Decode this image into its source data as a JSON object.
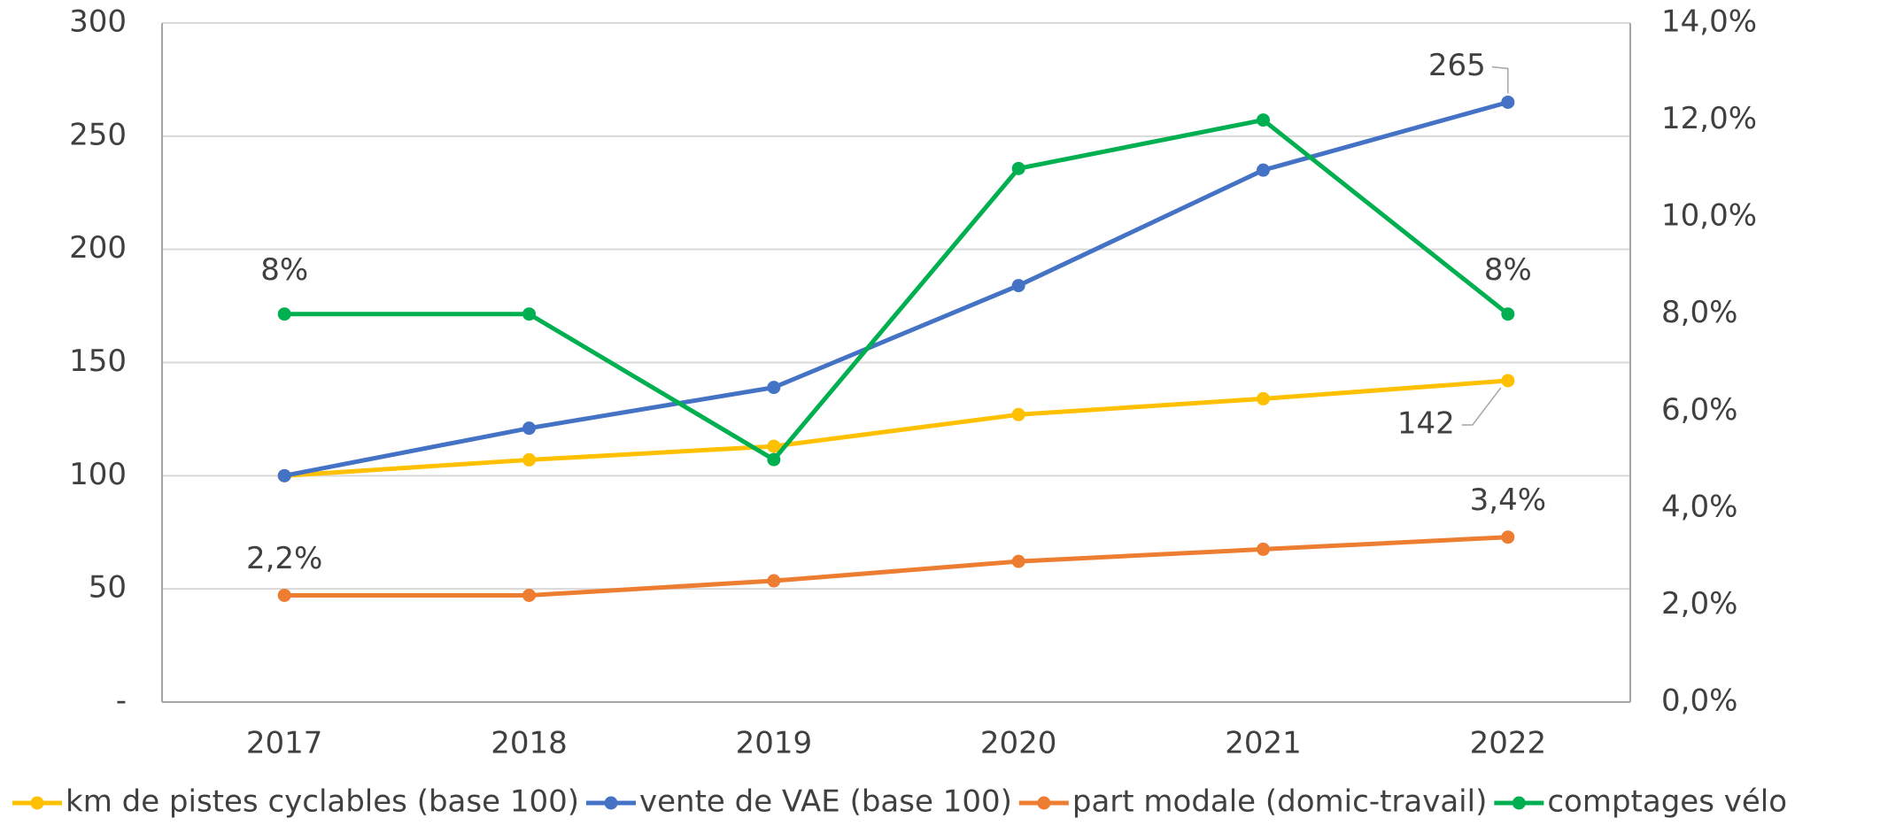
{
  "chart_data": {
    "type": "line",
    "categories": [
      "2017",
      "2018",
      "2019",
      "2020",
      "2021",
      "2022"
    ],
    "series": [
      {
        "name": "km de pistes cyclables (base 100)",
        "color": "#ffc000",
        "values": [
          100,
          107,
          113,
          127,
          134,
          142
        ],
        "value_labels": [
          null,
          null,
          null,
          null,
          null,
          "142"
        ]
      },
      {
        "name": "vente de VAE (base 100)",
        "color": "#4472c4",
        "values": [
          100,
          121,
          139,
          184,
          235,
          265
        ],
        "value_labels": [
          null,
          null,
          null,
          null,
          null,
          "265"
        ]
      },
      {
        "name": "part modale (domic-travail)",
        "color": "#ed7d31",
        "axis": "y2",
        "values": [
          2.2,
          2.2,
          2.5,
          2.9,
          3.15,
          3.4
        ],
        "value_labels": [
          "2,2%",
          null,
          null,
          null,
          null,
          "3,4%"
        ]
      },
      {
        "name": "comptages vélo",
        "color": "#00b050",
        "axis": "y2",
        "values": [
          8,
          8,
          5,
          11,
          12,
          8
        ],
        "value_labels": [
          "8%",
          null,
          null,
          null,
          null,
          "8%"
        ]
      }
    ],
    "ylim": [
      0,
      300
    ],
    "yticks": [
      {
        "value": 0,
        "label": "-"
      },
      50,
      100,
      150,
      200,
      250,
      300
    ],
    "y2lim": [
      0,
      14
    ],
    "y2ticks": [
      {
        "value": 0,
        "label": "0,0%"
      },
      {
        "value": 2,
        "label": "2,0%"
      },
      {
        "value": 4,
        "label": "4,0%"
      },
      {
        "value": 6,
        "label": "6,0%"
      },
      {
        "value": 8,
        "label": "8,0%"
      },
      {
        "value": 10,
        "label": "10,0%"
      },
      {
        "value": 12,
        "label": "12,0%"
      },
      {
        "value": 14,
        "label": "14,0%"
      }
    ],
    "grid": true,
    "legend": "bottom"
  }
}
